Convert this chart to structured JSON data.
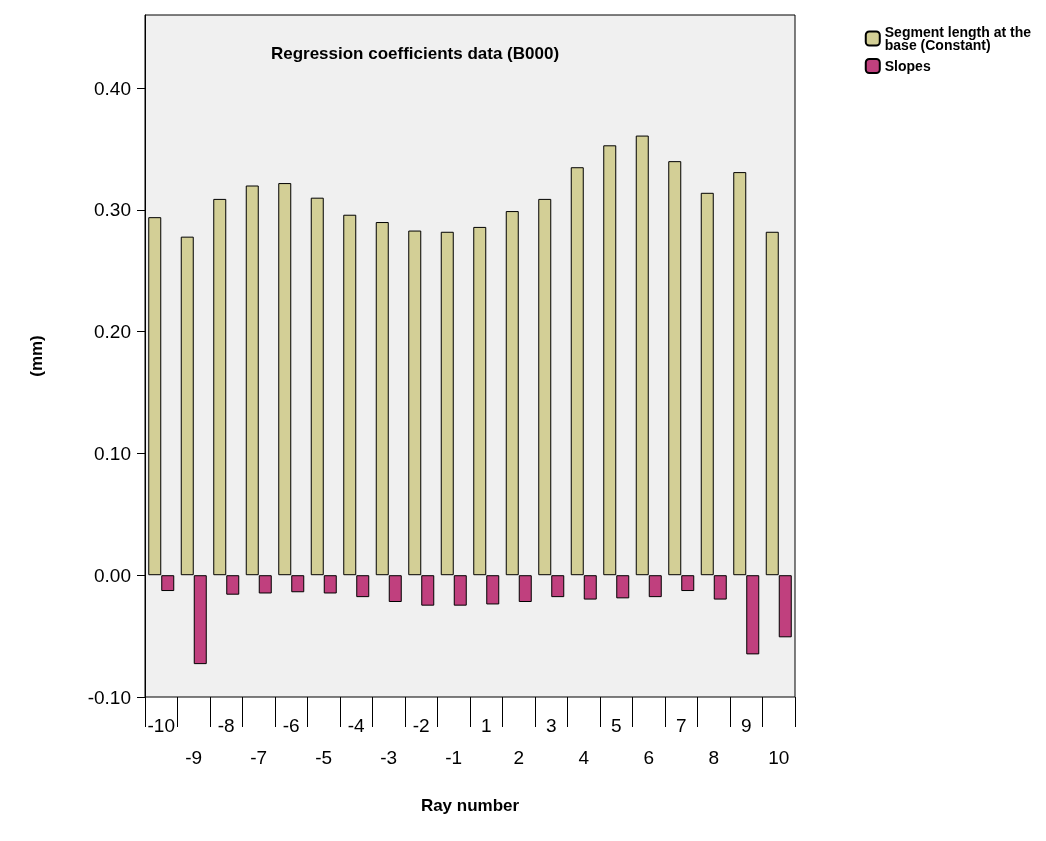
{
  "chart_data": {
    "type": "bar",
    "title": "Regression coefficients data (B000)",
    "xlabel": "Ray number",
    "ylabel": "(mm)",
    "categories": [
      "-10",
      "-9",
      "-8",
      "-7",
      "-6",
      "-5",
      "-4",
      "-3",
      "-2",
      "-1",
      "1",
      "2",
      "3",
      "4",
      "5",
      "6",
      "7",
      "8",
      "9",
      "10"
    ],
    "series": [
      {
        "name": "Segment length at the base (Constant)",
        "color": "#d3cf96",
        "values": [
          0.294,
          0.278,
          0.309,
          0.32,
          0.322,
          0.31,
          0.296,
          0.29,
          0.283,
          0.282,
          0.286,
          0.299,
          0.309,
          0.335,
          0.353,
          0.361,
          0.34,
          0.314,
          0.331,
          0.282
        ]
      },
      {
        "name": "Slopes",
        "color": "#c0407e",
        "values": [
          -0.013,
          -0.073,
          -0.016,
          -0.015,
          -0.014,
          -0.015,
          -0.018,
          -0.022,
          -0.025,
          -0.025,
          -0.024,
          -0.022,
          -0.018,
          -0.02,
          -0.019,
          -0.018,
          -0.013,
          -0.02,
          -0.065,
          -0.051
        ]
      }
    ],
    "ylim": [
      -0.1,
      0.46
    ],
    "yticks": [
      {
        "value": -0.1,
        "label": "-0.10"
      },
      {
        "value": 0,
        "label": "0.00"
      },
      {
        "value": 0.1,
        "label": "0.10"
      },
      {
        "value": 0.2,
        "label": "0.20"
      },
      {
        "value": 0.3,
        "label": "0.30"
      },
      {
        "value": 0.4,
        "label": "0.40"
      }
    ],
    "grid": false,
    "legend": "top right"
  }
}
